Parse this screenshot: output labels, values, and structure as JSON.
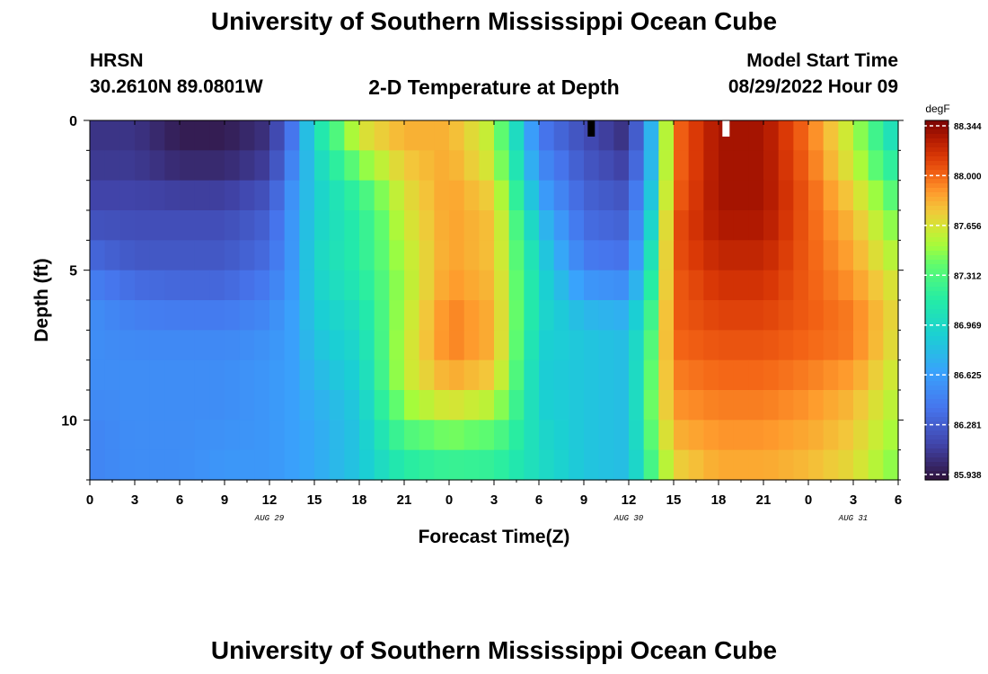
{
  "header": {
    "title": "University of Southern Mississippi Ocean Cube",
    "station": "HRSN",
    "coordinates": "30.2610N  89.0801W",
    "subtitle": "2-D Temperature at Depth",
    "model_start_label": "Model Start Time",
    "model_start_value": "08/29/2022 Hour 09"
  },
  "footer": {
    "title": "University of Southern Mississippi Ocean Cube"
  },
  "chart_data": {
    "type": "heatmap",
    "xlabel": "Forecast Time(Z)",
    "ylabel": "Depth (ft)",
    "x_range_hours": [
      0,
      54
    ],
    "xtick_labels": [
      "0",
      "3",
      "6",
      "9",
      "12",
      "15",
      "18",
      "21",
      "0",
      "3",
      "6",
      "9",
      "12",
      "15",
      "18",
      "21",
      "0",
      "3",
      "6"
    ],
    "date_labels": [
      {
        "label": "AUG 29",
        "hour": 12
      },
      {
        "label": "AUG 30",
        "hour": 36
      },
      {
        "label": "AUG 31",
        "hour": 51
      }
    ],
    "ylim": [
      0,
      12
    ],
    "ytick_labels": [
      {
        "label": "0",
        "value": 0
      },
      {
        "label": "5",
        "value": 5
      },
      {
        "label": "10",
        "value": 10
      }
    ],
    "colorbar": {
      "unit": "degF",
      "min": 85.938,
      "max": 88.344,
      "tick_labels": [
        "88.344",
        "88.000",
        "87.656",
        "87.312",
        "86.969",
        "86.625",
        "86.281",
        "85.938"
      ]
    },
    "depth_levels": [
      0,
      1,
      2,
      3,
      4,
      5,
      6,
      7,
      8,
      9,
      10,
      11,
      12
    ],
    "time_hours": [
      0,
      3,
      6,
      9,
      12,
      13.5,
      15,
      18,
      21,
      24,
      27,
      30,
      33,
      36,
      37.5,
      39,
      42,
      45,
      48,
      51,
      54
    ],
    "temperature_profiles": [
      [
        86.1,
        86.1,
        85.98,
        85.98,
        86.08,
        86.4,
        87.05,
        87.7,
        87.85,
        87.8,
        87.55,
        86.4,
        86.2,
        86.05,
        86.75,
        87.95,
        88.25,
        88.25,
        87.95,
        87.55,
        86.9
      ],
      [
        86.1,
        86.1,
        86.0,
        86.0,
        86.1,
        86.45,
        86.95,
        87.55,
        87.75,
        87.8,
        87.55,
        86.5,
        86.25,
        86.1,
        86.75,
        87.95,
        88.25,
        88.25,
        87.95,
        87.55,
        87.0
      ],
      [
        86.15,
        86.15,
        86.1,
        86.1,
        86.2,
        86.55,
        86.9,
        87.3,
        87.7,
        87.85,
        87.65,
        86.6,
        86.3,
        86.2,
        86.8,
        87.95,
        88.25,
        88.25,
        88.0,
        87.65,
        87.2
      ],
      [
        86.2,
        86.2,
        86.2,
        86.2,
        86.3,
        86.6,
        86.9,
        87.15,
        87.6,
        87.85,
        87.75,
        86.75,
        86.35,
        86.3,
        86.9,
        88.0,
        88.25,
        88.25,
        88.0,
        87.75,
        87.35
      ],
      [
        86.3,
        86.25,
        86.25,
        86.25,
        86.35,
        86.6,
        86.95,
        87.15,
        87.6,
        87.85,
        87.75,
        86.9,
        86.4,
        86.35,
        87.0,
        88.05,
        88.2,
        88.2,
        88.0,
        87.8,
        87.45
      ],
      [
        86.4,
        86.3,
        86.3,
        86.3,
        86.4,
        86.6,
        86.95,
        87.15,
        87.5,
        87.85,
        87.75,
        86.95,
        86.5,
        86.45,
        87.1,
        88.0,
        88.15,
        88.15,
        88.0,
        87.85,
        87.55
      ],
      [
        86.55,
        86.45,
        86.4,
        86.4,
        86.5,
        86.65,
        86.9,
        87.05,
        87.55,
        87.9,
        87.8,
        87.0,
        86.7,
        86.65,
        87.2,
        88.0,
        88.1,
        88.1,
        88.0,
        87.9,
        87.65
      ],
      [
        86.55,
        86.5,
        86.5,
        86.5,
        86.55,
        86.65,
        86.85,
        87.0,
        87.55,
        87.95,
        87.8,
        86.95,
        86.85,
        86.8,
        87.3,
        88.0,
        88.05,
        88.05,
        88.0,
        87.95,
        87.65
      ],
      [
        86.55,
        86.55,
        86.55,
        86.55,
        86.6,
        86.65,
        86.8,
        86.95,
        87.6,
        87.9,
        87.8,
        86.9,
        86.85,
        86.8,
        87.35,
        87.95,
        88.0,
        88.0,
        87.95,
        87.9,
        87.6
      ],
      [
        86.55,
        86.55,
        86.55,
        86.55,
        86.6,
        86.65,
        86.75,
        86.9,
        87.55,
        87.75,
        87.65,
        86.9,
        86.85,
        86.8,
        87.4,
        87.9,
        87.95,
        87.95,
        87.9,
        87.8,
        87.55
      ],
      [
        86.5,
        86.55,
        86.55,
        86.55,
        86.6,
        86.65,
        86.7,
        86.85,
        87.4,
        87.55,
        87.45,
        86.95,
        86.85,
        86.8,
        87.4,
        87.85,
        87.9,
        87.9,
        87.85,
        87.75,
        87.5
      ],
      [
        86.5,
        86.55,
        86.55,
        86.6,
        86.6,
        86.65,
        86.7,
        86.85,
        87.2,
        87.3,
        87.25,
        87.0,
        86.85,
        86.8,
        87.3,
        87.75,
        87.85,
        87.85,
        87.8,
        87.7,
        87.45
      ],
      [
        86.5,
        86.55,
        86.55,
        86.6,
        86.6,
        86.65,
        86.7,
        86.85,
        87.1,
        87.15,
        87.15,
        87.0,
        86.85,
        86.8,
        87.25,
        87.65,
        87.8,
        87.8,
        87.75,
        87.65,
        87.4
      ]
    ],
    "markers": [
      {
        "hour": 33.5,
        "depth": 0,
        "color": "#000000"
      },
      {
        "hour": 42.5,
        "depth": 0,
        "color": "#ffffff"
      }
    ]
  }
}
